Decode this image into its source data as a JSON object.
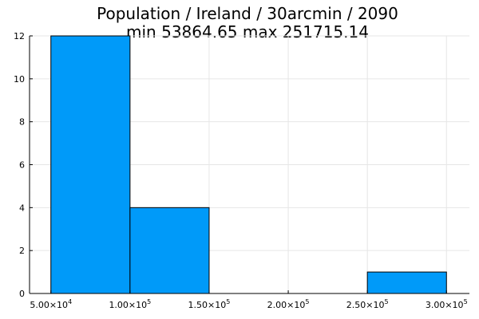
{
  "chart_data": {
    "type": "bar",
    "title": "Population / Ireland / 30arcmin / 2090",
    "subtitle": "min 53864.65  max 251715.14",
    "xlabel": "",
    "ylabel": "",
    "bins": [
      {
        "x0": 50000,
        "x1": 100000,
        "count": 12
      },
      {
        "x0": 100000,
        "x1": 150000,
        "count": 4
      },
      {
        "x0": 150000,
        "x1": 200000,
        "count": 0
      },
      {
        "x0": 200000,
        "x1": 250000,
        "count": 0
      },
      {
        "x0": 250000,
        "x1": 300000,
        "count": 1
      }
    ],
    "xlim": [
      36500,
      314500
    ],
    "ylim": [
      0,
      12
    ],
    "x_ticks": [
      50000,
      100000,
      150000,
      200000,
      250000,
      300000
    ],
    "x_tick_mantissas": [
      "5.00",
      "1.00",
      "1.50",
      "2.00",
      "2.50",
      "3.00"
    ],
    "x_tick_exponents": [
      "4",
      "5",
      "5",
      "5",
      "5",
      "5"
    ],
    "y_ticks": [
      0,
      2,
      4,
      6,
      8,
      10,
      12
    ],
    "y_tick_labels": [
      "0",
      "2",
      "4",
      "6",
      "8",
      "10",
      "12"
    ],
    "grid": true,
    "legend": "none",
    "bar_color": "#009af9"
  }
}
